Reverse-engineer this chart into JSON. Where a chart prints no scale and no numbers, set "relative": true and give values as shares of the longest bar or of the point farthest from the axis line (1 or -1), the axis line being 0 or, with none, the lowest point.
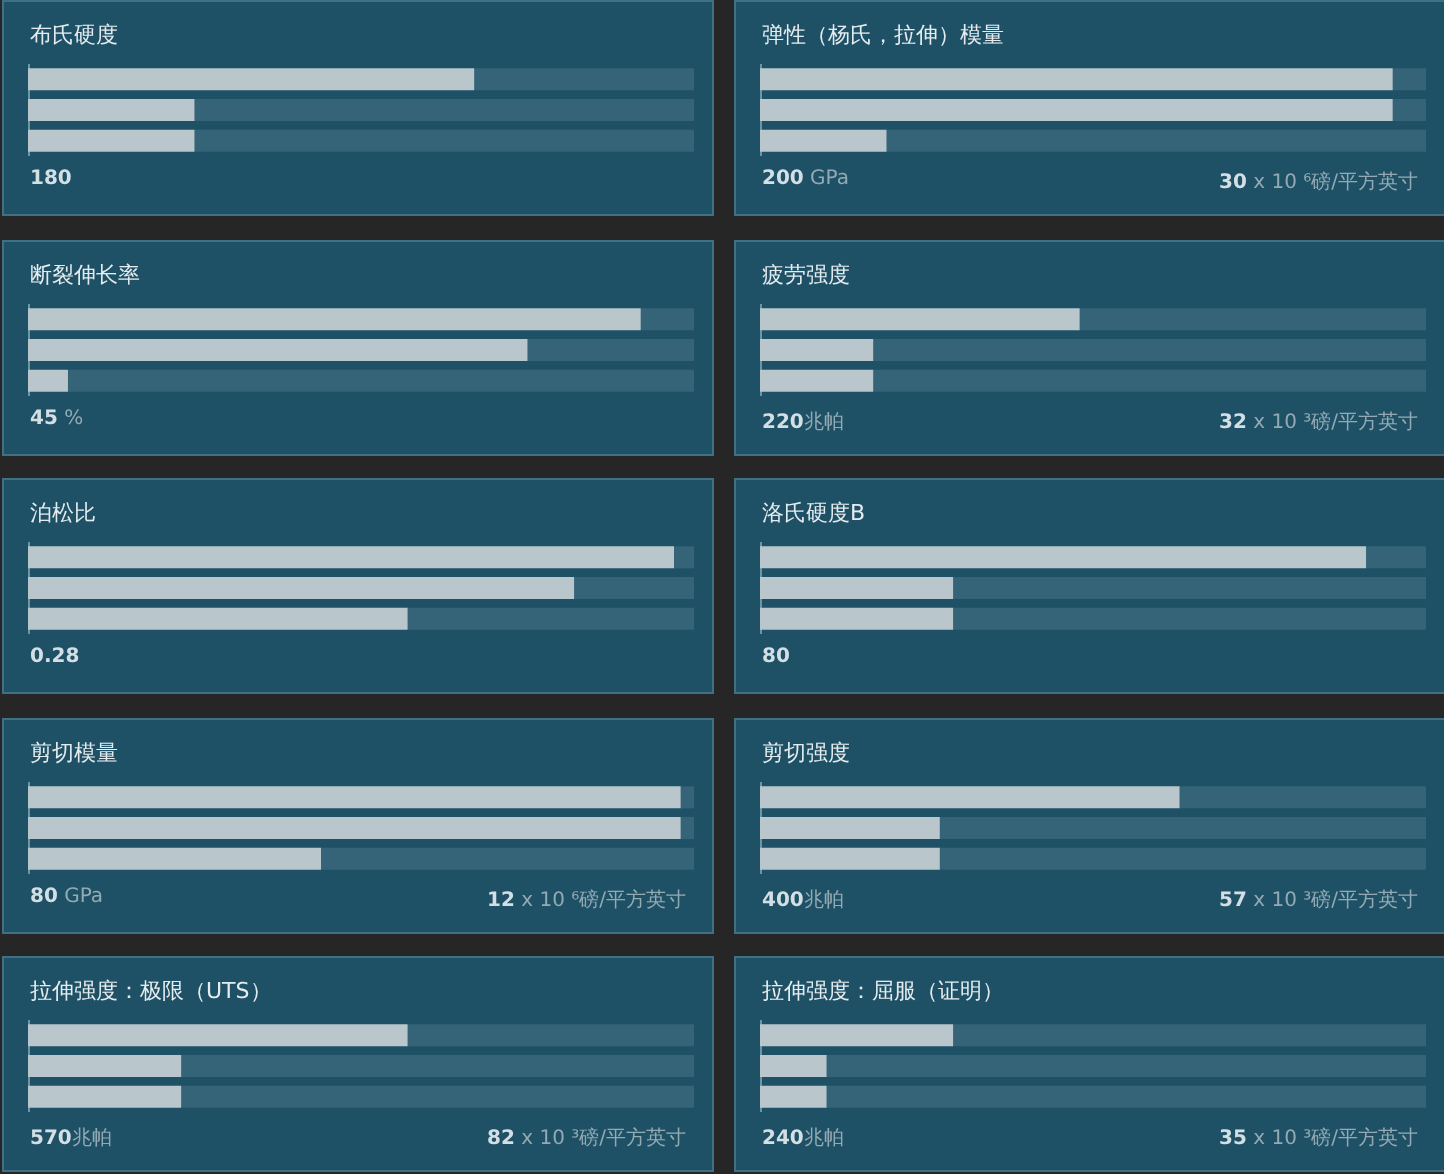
{
  "chart_data": [
    {
      "type": "bar",
      "orientation": "horizontal",
      "stacked": true,
      "relative": true,
      "tick_labels": false,
      "title": "布氏硬度",
      "categories": [
        null,
        null,
        null
      ],
      "series": [
        {
          "color": "#b9c7cd",
          "values": [
            0.67,
            0.25,
            0.25
          ]
        },
        {
          "color": "#356377",
          "values": [
            0.33,
            0.75,
            0.75
          ]
        }
      ],
      "annotations": [
        "180"
      ]
    },
    {
      "type": "bar",
      "orientation": "horizontal",
      "stacked": true,
      "relative": true,
      "tick_labels": false,
      "title": "弹性（杨氏，拉伸）模量",
      "categories": [
        null,
        null,
        null
      ],
      "series": [
        {
          "color": "#b9c7cd",
          "values": [
            0.95,
            0.95,
            0.19
          ]
        },
        {
          "color": "#356377",
          "values": [
            0.05,
            0.05,
            0.81
          ]
        }
      ],
      "annotations": [
        "200 GPa",
        "30 x 10 ⁶磅/平方英寸"
      ]
    },
    {
      "type": "bar",
      "orientation": "horizontal",
      "stacked": true,
      "relative": true,
      "tick_labels": false,
      "title": "断裂伸长率",
      "categories": [
        null,
        null,
        null
      ],
      "series": [
        {
          "color": "#b9c7cd",
          "values": [
            0.92,
            0.75,
            0.06
          ]
        },
        {
          "color": "#356377",
          "values": [
            0.08,
            0.25,
            0.94
          ]
        }
      ],
      "annotations": [
        "45 %"
      ]
    },
    {
      "type": "bar",
      "orientation": "horizontal",
      "stacked": true,
      "relative": true,
      "tick_labels": false,
      "title": "疲劳强度",
      "categories": [
        null,
        null,
        null
      ],
      "series": [
        {
          "color": "#b9c7cd",
          "values": [
            0.48,
            0.17,
            0.17
          ]
        },
        {
          "color": "#356377",
          "values": [
            0.52,
            0.83,
            0.83
          ]
        }
      ],
      "annotations": [
        "220兆帕",
        "32 x 10 ³磅/平方英寸"
      ]
    },
    {
      "type": "bar",
      "orientation": "horizontal",
      "stacked": true,
      "relative": true,
      "tick_labels": false,
      "title": "泊松比",
      "categories": [
        null,
        null,
        null
      ],
      "series": [
        {
          "color": "#b9c7cd",
          "values": [
            0.97,
            0.82,
            0.57
          ]
        },
        {
          "color": "#356377",
          "values": [
            0.03,
            0.18,
            0.43
          ]
        }
      ],
      "annotations": [
        "0.28"
      ]
    },
    {
      "type": "bar",
      "orientation": "horizontal",
      "stacked": true,
      "relative": true,
      "tick_labels": false,
      "title": "洛氏硬度B",
      "categories": [
        null,
        null,
        null
      ],
      "series": [
        {
          "color": "#b9c7cd",
          "values": [
            0.91,
            0.29,
            0.29
          ]
        },
        {
          "color": "#356377",
          "values": [
            0.09,
            0.71,
            0.71
          ]
        }
      ],
      "annotations": [
        "80"
      ]
    },
    {
      "type": "bar",
      "orientation": "horizontal",
      "stacked": true,
      "relative": true,
      "tick_labels": false,
      "title": "剪切模量",
      "categories": [
        null,
        null,
        null
      ],
      "series": [
        {
          "color": "#b9c7cd",
          "values": [
            0.98,
            0.98,
            0.44
          ]
        },
        {
          "color": "#356377",
          "values": [
            0.02,
            0.02,
            0.56
          ]
        }
      ],
      "annotations": [
        "80 GPa",
        "12 x 10 ⁶磅/平方英寸"
      ]
    },
    {
      "type": "bar",
      "orientation": "horizontal",
      "stacked": true,
      "relative": true,
      "tick_labels": false,
      "title": "剪切强度",
      "categories": [
        null,
        null,
        null
      ],
      "series": [
        {
          "color": "#b9c7cd",
          "values": [
            0.63,
            0.27,
            0.27
          ]
        },
        {
          "color": "#356377",
          "values": [
            0.37,
            0.73,
            0.73
          ]
        }
      ],
      "annotations": [
        "400兆帕",
        "57 x 10 ³磅/平方英寸"
      ]
    },
    {
      "type": "bar",
      "orientation": "horizontal",
      "stacked": true,
      "relative": true,
      "tick_labels": false,
      "title": "拉伸强度：极限（UTS）",
      "categories": [
        null,
        null,
        null
      ],
      "series": [
        {
          "color": "#b9c7cd",
          "values": [
            0.57,
            0.23,
            0.23
          ]
        },
        {
          "color": "#356377",
          "values": [
            0.43,
            0.77,
            0.77
          ]
        }
      ],
      "annotations": [
        "570兆帕",
        "82 x 10 ³磅/平方英寸"
      ]
    },
    {
      "type": "bar",
      "orientation": "horizontal",
      "stacked": true,
      "relative": true,
      "tick_labels": false,
      "title": "拉伸强度：屈服（证明）",
      "categories": [
        null,
        null,
        null
      ],
      "series": [
        {
          "color": "#b9c7cd",
          "values": [
            0.29,
            0.1,
            0.1
          ]
        },
        {
          "color": "#356377",
          "values": [
            0.71,
            0.9,
            0.9
          ]
        }
      ],
      "annotations": [
        "240兆帕",
        "35 x 10 ³磅/平方英寸"
      ]
    }
  ]
}
